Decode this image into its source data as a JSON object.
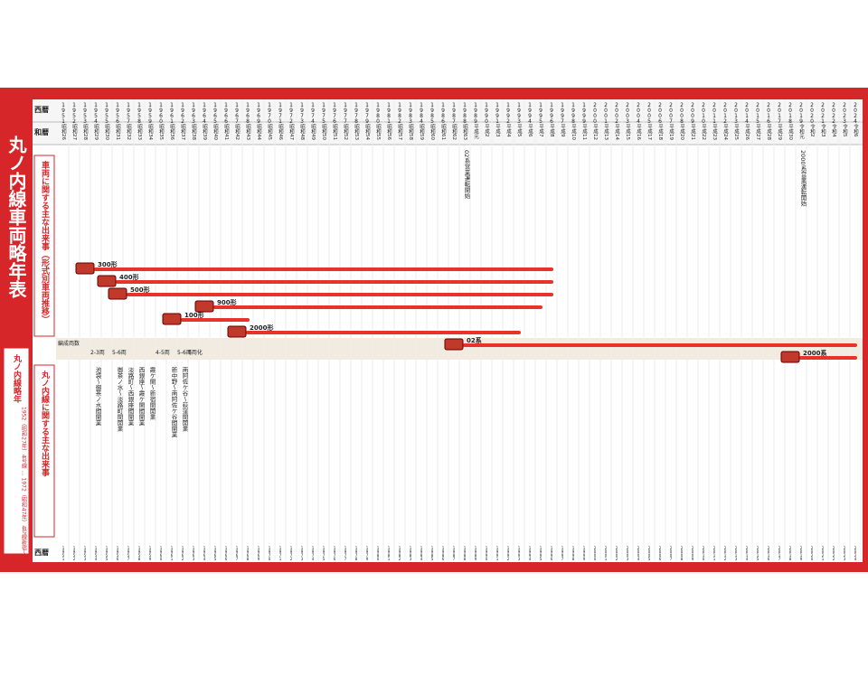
{
  "title": "丸ノ内線車両略年表",
  "header": {
    "year_label": "西暦",
    "era_label": "和暦"
  },
  "sections": {
    "cars": "車両に関する主な出来事（形式別車両推移）",
    "line": "丸ノ内線に関する主な出来事",
    "formation": "編成両数"
  },
  "summary": {
    "title": "丸ノ内線略年",
    "text": "1952（昭和27年）4号線 … 1972（昭和47年）4号線新宿〜荻窪"
  },
  "timeline": {
    "start": 1951,
    "end": 2024,
    "years": [
      "1951",
      "1952",
      "1953",
      "1954",
      "1955",
      "1956",
      "1957",
      "1958",
      "1959",
      "1960",
      "1961",
      "1962",
      "1963",
      "1964",
      "1965",
      "1966",
      "1967",
      "1968",
      "1969",
      "1970",
      "1971",
      "1972",
      "1973",
      "1974",
      "1975",
      "1976",
      "1977",
      "1978",
      "1979",
      "1980",
      "1981",
      "1982",
      "1983",
      "1984",
      "1985",
      "1986",
      "1987",
      "1988",
      "1989",
      "1990",
      "1991",
      "1992",
      "1993",
      "1994",
      "1995",
      "1996",
      "1997",
      "1998",
      "1999",
      "2000",
      "2001",
      "2002",
      "2003",
      "2004",
      "2005",
      "2006",
      "2007",
      "2008",
      "2009",
      "2010",
      "2011",
      "2012",
      "2013",
      "2014",
      "2015",
      "2016",
      "2017",
      "2018",
      "2019",
      "2020",
      "2021",
      "2022",
      "2023",
      "2024"
    ],
    "eras": [
      "昭和26",
      "昭和27",
      "昭和28",
      "昭和29",
      "昭和30",
      "昭和31",
      "昭和32",
      "昭和33",
      "昭和34",
      "昭和35",
      "昭和36",
      "昭和37",
      "昭和38",
      "昭和39",
      "昭和40",
      "昭和41",
      "昭和42",
      "昭和43",
      "昭和44",
      "昭和45",
      "昭和46",
      "昭和47",
      "昭和48",
      "昭和49",
      "昭和50",
      "昭和51",
      "昭和52",
      "昭和53",
      "昭和54",
      "昭和55",
      "昭和56",
      "昭和57",
      "昭和58",
      "昭和59",
      "昭和60",
      "昭和61",
      "昭和62",
      "昭和63",
      "平成元",
      "平成2",
      "平成3",
      "平成4",
      "平成5",
      "平成6",
      "平成7",
      "平成8",
      "平成9",
      "平成10",
      "平成11",
      "平成12",
      "平成13",
      "平成14",
      "平成15",
      "平成16",
      "平成17",
      "平成18",
      "平成19",
      "平成20",
      "平成21",
      "平成22",
      "平成23",
      "平成24",
      "平成25",
      "平成26",
      "平成27",
      "平成28",
      "平成29",
      "平成30",
      "令和元",
      "令和2",
      "令和3",
      "令和4",
      "令和5",
      "令和6"
    ]
  },
  "cars": [
    {
      "name": "300形",
      "start": 1954,
      "end": 1996,
      "color": "#e8332a"
    },
    {
      "name": "400形",
      "start": 1956,
      "end": 1996,
      "color": "#e8332a"
    },
    {
      "name": "500形",
      "start": 1957,
      "end": 1996,
      "color": "#e8332a"
    },
    {
      "name": "900形",
      "start": 1965,
      "end": 1995,
      "color": "#e8332a"
    },
    {
      "name": "100形",
      "start": 1962,
      "end": 1968,
      "color": "#e8332a"
    },
    {
      "name": "2000形",
      "start": 1968,
      "end": 1993,
      "color": "#e8332a"
    },
    {
      "name": "02系",
      "start": 1988,
      "end": 2024,
      "color": "#e8332a"
    },
    {
      "name": "2000系",
      "start": 2019,
      "end": 2024,
      "color": "#e8332a"
    }
  ],
  "formations": [
    {
      "year": 1954,
      "label": "2-3両"
    },
    {
      "year": 1956,
      "label": "5-6両"
    },
    {
      "year": 1960,
      "label": "4-5両"
    },
    {
      "year": 1962,
      "label": "5-6両"
    },
    {
      "year": 1963,
      "label": "6両化"
    }
  ],
  "events": [
    {
      "year": 1954,
      "text": "池袋〜御茶ノ水間開業"
    },
    {
      "year": 1956,
      "text": "御茶ノ水〜淡路町間開業"
    },
    {
      "year": 1957,
      "text": "淡路町〜西銀座間開業"
    },
    {
      "year": 1958,
      "text": "西銀座〜霞ケ関間開業"
    },
    {
      "year": 1959,
      "text": "霞ケ関〜新宿間開業"
    },
    {
      "year": 1961,
      "text": "新中野〜南阿佐ケ谷間開業"
    },
    {
      "year": 1962,
      "text": "南阿佐ケ谷〜荻窪間開業"
    },
    {
      "year": 1988,
      "text": "02系営業運転開始"
    },
    {
      "year": 2019,
      "text": "2000系営業運転開始"
    }
  ]
}
